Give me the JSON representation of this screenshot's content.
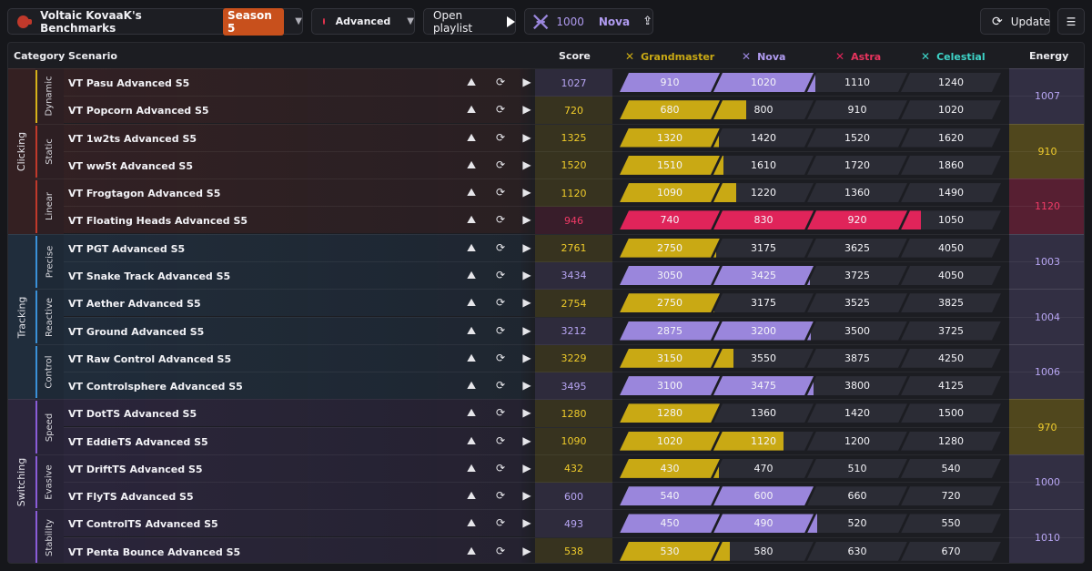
{
  "header": {
    "title": "Voltaic KovaaK's Benchmarks",
    "season": "Season 5",
    "difficulty": "Advanced",
    "open_playlist": "Open playlist",
    "rank_value": "1000",
    "rank_name": "Nova",
    "update": "Update"
  },
  "columns": {
    "category": "Category",
    "scenario": "Scenario",
    "score": "Score",
    "ranks": [
      "Grandmaster",
      "Nova",
      "Astra",
      "Celestial"
    ],
    "energy": "Energy"
  },
  "colors": {
    "grandmaster": "#c9a914",
    "nova": "#9a86dc",
    "astra": "#e0245a",
    "celestial": "#3ed4c8",
    "clicking": "#c0392b",
    "tracking": "#3a90d8",
    "switching": "#8a5cd8"
  },
  "categories": [
    {
      "name": "Clicking",
      "rows": 6,
      "subs": [
        {
          "name": "Dynamic",
          "accent": "#d6b21a",
          "energy": "1007",
          "energy_rank": "nova"
        },
        {
          "name": "Static",
          "accent": "#c0392b",
          "energy": "910",
          "energy_rank": "grandmaster"
        },
        {
          "name": "Linear",
          "accent": "#c0392b",
          "energy": "1120",
          "energy_rank": "astra"
        }
      ]
    },
    {
      "name": "Tracking",
      "rows": 6,
      "subs": [
        {
          "name": "Precise",
          "accent": "#3a90d8",
          "energy": "1003",
          "energy_rank": "nova"
        },
        {
          "name": "Reactive",
          "accent": "#3a90d8",
          "energy": "1004",
          "energy_rank": "nova"
        },
        {
          "name": "Control",
          "accent": "#3a90d8",
          "energy": "1006",
          "energy_rank": "nova"
        }
      ]
    },
    {
      "name": "Switching",
      "rows": 6,
      "subs": [
        {
          "name": "Speed",
          "accent": "#8a5cd8",
          "energy": "970",
          "energy_rank": "grandmaster"
        },
        {
          "name": "Evasive",
          "accent": "#8a5cd8",
          "energy": "1000",
          "energy_rank": "nova"
        },
        {
          "name": "Stability",
          "accent": "#8a5cd8",
          "energy": "1010",
          "energy_rank": "nova"
        }
      ]
    }
  ],
  "rows": [
    {
      "name": "VT Pasu Advanced S5",
      "score": "1027",
      "rank": "nova",
      "thresholds": [
        "910",
        "1020",
        "1110",
        "1240"
      ],
      "fill": [
        1,
        1,
        0.08,
        0
      ]
    },
    {
      "name": "VT Popcorn Advanced S5",
      "score": "720",
      "rank": "grandmaster",
      "thresholds": [
        "680",
        "800",
        "910",
        "1020"
      ],
      "fill": [
        1,
        0.33,
        0,
        0
      ]
    },
    {
      "name": "VT 1w2ts Advanced S5",
      "score": "1325",
      "rank": "grandmaster",
      "thresholds": [
        "1320",
        "1420",
        "1520",
        "1620"
      ],
      "fill": [
        1,
        0.05,
        0,
        0
      ]
    },
    {
      "name": "VT ww5t Advanced S5",
      "score": "1520",
      "rank": "grandmaster",
      "thresholds": [
        "1510",
        "1610",
        "1720",
        "1860"
      ],
      "fill": [
        1,
        0.1,
        0,
        0
      ]
    },
    {
      "name": "VT Frogtagon Advanced S5",
      "score": "1120",
      "rank": "grandmaster",
      "thresholds": [
        "1090",
        "1220",
        "1360",
        "1490"
      ],
      "fill": [
        1,
        0.23,
        0,
        0
      ]
    },
    {
      "name": "VT Floating Heads Advanced S5",
      "score": "946",
      "rank": "astra",
      "thresholds": [
        "740",
        "830",
        "920",
        "1050"
      ],
      "fill": [
        1,
        1,
        1,
        0.2
      ]
    },
    {
      "name": "VT PGT Advanced S5",
      "score": "2761",
      "rank": "grandmaster",
      "thresholds": [
        "2750",
        "3175",
        "3625",
        "4050"
      ],
      "fill": [
        1,
        0.03,
        0,
        0
      ]
    },
    {
      "name": "VT Snake Track Advanced S5",
      "score": "3434",
      "rank": "nova",
      "thresholds": [
        "3050",
        "3425",
        "3725",
        "4050"
      ],
      "fill": [
        1,
        1,
        0.03,
        0
      ]
    },
    {
      "name": "VT Aether Advanced S5",
      "score": "2754",
      "rank": "grandmaster",
      "thresholds": [
        "2750",
        "3175",
        "3525",
        "3825"
      ],
      "fill": [
        1,
        0.01,
        0,
        0
      ]
    },
    {
      "name": "VT Ground Advanced S5",
      "score": "3212",
      "rank": "nova",
      "thresholds": [
        "2875",
        "3200",
        "3500",
        "3725"
      ],
      "fill": [
        1,
        1,
        0.04,
        0
      ]
    },
    {
      "name": "VT Raw Control Advanced S5",
      "score": "3229",
      "rank": "grandmaster",
      "thresholds": [
        "3150",
        "3550",
        "3875",
        "4250"
      ],
      "fill": [
        1,
        0.2,
        0,
        0
      ]
    },
    {
      "name": "VT Controlsphere Advanced S5",
      "score": "3495",
      "rank": "nova",
      "thresholds": [
        "3100",
        "3475",
        "3800",
        "4125"
      ],
      "fill": [
        1,
        1,
        0.06,
        0
      ]
    },
    {
      "name": "VT DotTS Advanced S5",
      "score": "1280",
      "rank": "grandmaster",
      "thresholds": [
        "1280",
        "1360",
        "1420",
        "1500"
      ],
      "fill": [
        1,
        0,
        0,
        0
      ]
    },
    {
      "name": "VT EddieTS Advanced S5",
      "score": "1090",
      "rank": "grandmaster",
      "thresholds": [
        "1020",
        "1120",
        "1200",
        "1280"
      ],
      "fill": [
        1,
        0.7,
        0,
        0
      ]
    },
    {
      "name": "VT DriftTS Advanced S5",
      "score": "432",
      "rank": "grandmaster",
      "thresholds": [
        "430",
        "470",
        "510",
        "540"
      ],
      "fill": [
        1,
        0.05,
        0,
        0
      ]
    },
    {
      "name": "VT FlyTS Advanced S5",
      "score": "600",
      "rank": "nova",
      "thresholds": [
        "540",
        "600",
        "660",
        "720"
      ],
      "fill": [
        1,
        1,
        0,
        0
      ]
    },
    {
      "name": "VT ControlTS Advanced S5",
      "score": "493",
      "rank": "nova",
      "thresholds": [
        "450",
        "490",
        "520",
        "550"
      ],
      "fill": [
        1,
        1,
        0.1,
        0
      ]
    },
    {
      "name": "VT Penta Bounce Advanced S5",
      "score": "538",
      "rank": "grandmaster",
      "thresholds": [
        "530",
        "580",
        "630",
        "670"
      ],
      "fill": [
        1,
        0.16,
        0,
        0
      ]
    }
  ]
}
